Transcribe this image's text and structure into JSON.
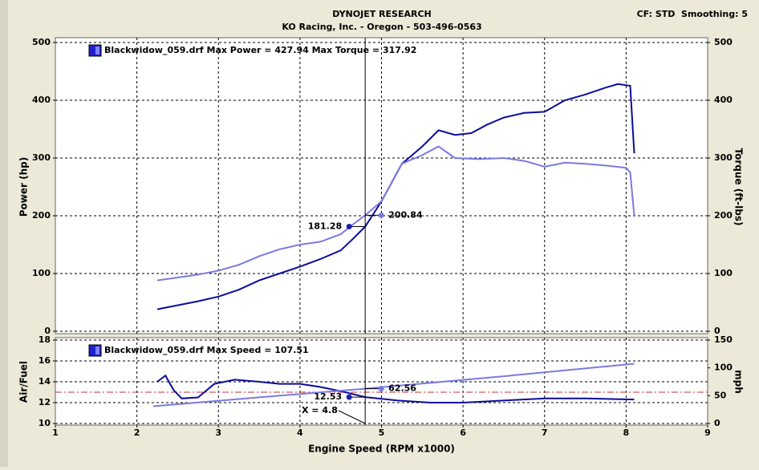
{
  "header": {
    "title": "DYNOJET RESEARCH",
    "subtitle": "KO Racing, Inc. - Oregon - 503-496-0563",
    "settings": "CF: STD  Smoothing: 5"
  },
  "chart_data": [
    {
      "type": "line",
      "legend": "Blackwidow_059.drf Max Power = 427.94 Max Torque = 317.92",
      "ylabel": "Power (hp)",
      "y2label": "Torque (ft-lbs)",
      "xlim": [
        1,
        9
      ],
      "xticks": [
        1,
        2,
        3,
        4,
        5,
        6,
        7,
        8,
        9
      ],
      "ylim": [
        0,
        500
      ],
      "yticks": [
        0,
        100,
        200,
        300,
        400,
        500
      ],
      "y2lim": [
        0,
        500
      ],
      "y2ticks": [
        0,
        100,
        200,
        300,
        400,
        500
      ],
      "grid": true,
      "series": [
        {
          "color": "#0c0c9a",
          "x": [
            2.25,
            2.5,
            2.75,
            3,
            3.25,
            3.5,
            3.75,
            4,
            4.25,
            4.5,
            4.65,
            4.8,
            5,
            5.25,
            5.5,
            5.7,
            5.9,
            6.1,
            6.3,
            6.5,
            6.75,
            7,
            7.25,
            7.5,
            7.75,
            7.9,
            8.05,
            8.1
          ],
          "values": [
            38,
            45,
            52,
            60,
            72,
            88,
            100,
            112,
            125,
            140,
            160,
            181.28,
            225,
            290,
            320,
            348,
            340,
            343,
            358,
            370,
            378,
            380,
            400,
            410,
            422,
            428,
            425,
            308
          ]
        },
        {
          "color": "#7a7ae2",
          "axis": "y2",
          "x": [
            2.25,
            2.5,
            2.75,
            3,
            3.25,
            3.5,
            3.75,
            4,
            4.25,
            4.5,
            4.65,
            4.8,
            5,
            5.25,
            5.5,
            5.7,
            5.9,
            6.2,
            6.5,
            6.75,
            7,
            7.25,
            7.5,
            7.75,
            8,
            8.05,
            8.1
          ],
          "values": [
            88,
            93,
            98,
            105,
            115,
            130,
            142,
            150,
            155,
            168,
            185,
            200.84,
            225,
            290,
            305,
            320,
            300,
            298,
            300,
            295,
            285,
            292,
            290,
            287,
            283,
            275,
            200
          ]
        }
      ],
      "annotations": [
        {
          "x": 4.8,
          "value": 181.28,
          "side": "left"
        },
        {
          "x": 4.8,
          "value": 200.84,
          "axis": "y2",
          "side": "right"
        }
      ]
    },
    {
      "type": "line",
      "legend": "Blackwidow_059.drf Max Speed = 107.51",
      "ylabel": "Air/Fuel",
      "y2label": "mph",
      "xlabel": "Engine Speed (RPM x1000)",
      "xlim": [
        1,
        9
      ],
      "xticks": [
        1,
        2,
        3,
        4,
        5,
        6,
        7,
        8,
        9
      ],
      "ylim": [
        10,
        18
      ],
      "yticks": [
        10,
        12,
        14,
        16,
        18
      ],
      "y2lim": [
        0,
        150
      ],
      "y2ticks": [
        0,
        50,
        100,
        150
      ],
      "grid": true,
      "reference_line": {
        "value": 13,
        "color": "#c83232"
      },
      "cursor": {
        "x": 4.8,
        "label": "X = 4.8"
      },
      "series": [
        {
          "color": "#0c0c9a",
          "x": [
            2.25,
            2.35,
            2.45,
            2.55,
            2.75,
            2.95,
            3.2,
            3.5,
            3.75,
            4,
            4.25,
            4.5,
            4.8,
            5.2,
            5.6,
            6,
            6.5,
            7,
            7.5,
            8.1
          ],
          "values": [
            14,
            14.6,
            13.2,
            12.4,
            12.5,
            13.8,
            14.2,
            14,
            13.8,
            13.8,
            13.5,
            13.1,
            12.53,
            12.2,
            12,
            12,
            12.2,
            12.4,
            12.4,
            12.3
          ]
        },
        {
          "color": "#7a7ae2",
          "axis": "y2",
          "x": [
            2.2,
            3.5,
            4.8,
            6.5,
            8.1
          ],
          "values": [
            31,
            47,
            62.56,
            85,
            107.51
          ]
        }
      ],
      "annotations": [
        {
          "x": 4.8,
          "value": 12.53,
          "side": "left"
        },
        {
          "x": 4.8,
          "value": 62.56,
          "axis": "y2",
          "side": "right"
        }
      ]
    }
  ]
}
